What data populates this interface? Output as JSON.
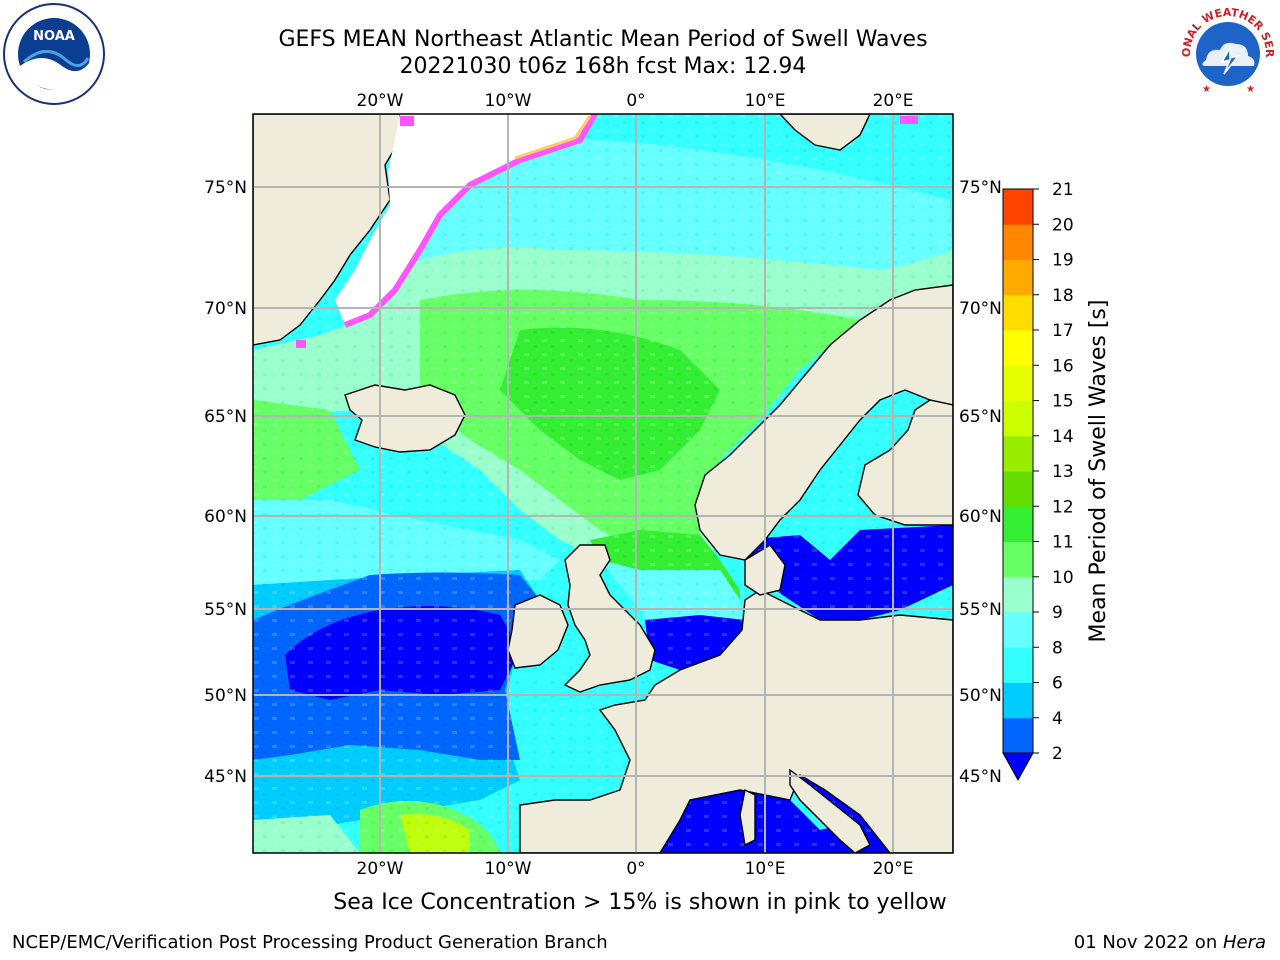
{
  "header": {
    "title_line1": "GEFS MEAN Northeast Atlantic Mean Period of Swell Waves",
    "title_line2": "20221030 t06z 168h fcst   Max: 12.94"
  },
  "logos": {
    "left": "noaa-logo",
    "right": "national-weather-service-logo",
    "left_text": "NOAA",
    "right_text": "NATIONAL WEATHER SERVICE"
  },
  "map": {
    "lon_ticks": [
      "20°W",
      "10°W",
      "0°",
      "10°E",
      "20°E"
    ],
    "lat_ticks": [
      "75°N",
      "70°N",
      "65°N",
      "60°N",
      "55°N",
      "50°N",
      "45°N"
    ],
    "colors": {
      "land": "#efecdc",
      "ice": "#ffffff",
      "coast": "#000000",
      "grid": "#b4b4b4"
    }
  },
  "colorbar": {
    "label": "Mean Period of Swell Waves [s]",
    "ticks": [
      "2",
      "4",
      "6",
      "8",
      "9",
      "10",
      "11",
      "12",
      "13",
      "14",
      "15",
      "16",
      "17",
      "18",
      "19",
      "20",
      "21"
    ],
    "colors": [
      "#0066ff",
      "#00ccff",
      "#33ffff",
      "#66ffff",
      "#99ffcc",
      "#66ff66",
      "#33ee33",
      "#66dd00",
      "#99ee00",
      "#ccff00",
      "#e6ff00",
      "#ffff00",
      "#ffdd00",
      "#ffaa00",
      "#ff8800",
      "#ff4400",
      "#ff1100"
    ],
    "extend_color": "#0000ff"
  },
  "footer": {
    "note": "Sea Ice Concentration > 15% is shown in pink to yellow",
    "credit_left": "NCEP/EMC/Verification Post Processing Product Generation Branch",
    "credit_right_date": "01 Nov 2022 on ",
    "credit_right_host": "Hera"
  }
}
